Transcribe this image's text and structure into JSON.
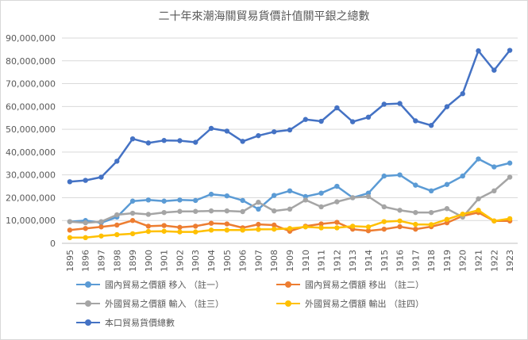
{
  "chart_data": {
    "type": "line",
    "title": "二十年來潮海關貿易貨價計值關平銀之總數",
    "x": [
      "1895",
      "1896",
      "1897",
      "1898",
      "1899",
      "1900",
      "1901",
      "1902",
      "1903",
      "1904",
      "1905",
      "1906",
      "1907",
      "1908",
      "1909",
      "1910",
      "1911",
      "1912",
      "1913",
      "1914",
      "1915",
      "1916",
      "1917",
      "1918",
      "1919",
      "1920",
      "1921",
      "1922",
      "1923"
    ],
    "ylim": [
      0,
      90000000
    ],
    "yticks": [
      "0",
      "10,000,000",
      "20,000,000",
      "30,000,000",
      "40,000,000",
      "50,000,000",
      "60,000,000",
      "70,000,000",
      "80,000,000",
      "90,000,000"
    ],
    "grid": true,
    "legend_position": "bottom",
    "series": [
      {
        "name": "國內貿易之價額 移入 （註一）",
        "color": "#5b9bd5",
        "values": [
          9500000,
          10000000,
          9000000,
          11500000,
          18500000,
          19000000,
          18500000,
          19000000,
          18800000,
          21500000,
          20800000,
          18800000,
          15000000,
          21000000,
          23000000,
          20500000,
          22000000,
          25000000,
          20000000,
          22000000,
          29500000,
          30000000,
          25500000,
          23000000,
          25800000,
          29500000,
          37000000,
          33500000,
          35200000
        ]
      },
      {
        "name": "國內貿易之價額 移出 （註二）",
        "color": "#ed7d31",
        "values": [
          5800000,
          6500000,
          7200000,
          8000000,
          10000000,
          7500000,
          7800000,
          7000000,
          7500000,
          8800000,
          8500000,
          6800000,
          8300000,
          8000000,
          5300000,
          7500000,
          8500000,
          9200000,
          6200000,
          5500000,
          6200000,
          7300000,
          6200000,
          7300000,
          9000000,
          12000000,
          13500000,
          9800000,
          9800000
        ]
      },
      {
        "name": "外國貿易之價額 輸入 （註三）",
        "color": "#a5a5a5",
        "values": [
          9500000,
          9000000,
          9500000,
          12500000,
          13200000,
          12700000,
          13500000,
          14000000,
          14000000,
          14200000,
          14200000,
          13900000,
          18000000,
          14200000,
          15000000,
          19000000,
          16000000,
          18200000,
          20000000,
          20500000,
          16000000,
          14500000,
          13500000,
          13500000,
          15200000,
          11500000,
          19500000,
          23000000,
          29000000
        ]
      },
      {
        "name": "外國貿易之價額 輸出 （註四）",
        "color": "#ffc000",
        "values": [
          2500000,
          2500000,
          3200000,
          3800000,
          4200000,
          5200000,
          5300000,
          5000000,
          5000000,
          5800000,
          5800000,
          5800000,
          6100000,
          6200000,
          6500000,
          7200000,
          6800000,
          6800000,
          7500000,
          7200000,
          9500000,
          9800000,
          8300000,
          8200000,
          10500000,
          12800000,
          14500000,
          9800000,
          10800000
        ]
      },
      {
        "name": "本口貿易貨價總數",
        "color": "#4472c4",
        "values": [
          27000000,
          27600000,
          29000000,
          36000000,
          45800000,
          44000000,
          45100000,
          45000000,
          44300000,
          50400000,
          49200000,
          44700000,
          47200000,
          48900000,
          49700000,
          54300000,
          53500000,
          59400000,
          53300000,
          55300000,
          61000000,
          61300000,
          53700000,
          51700000,
          59900000,
          65600000,
          84400000,
          75900000,
          84600000
        ]
      }
    ]
  }
}
